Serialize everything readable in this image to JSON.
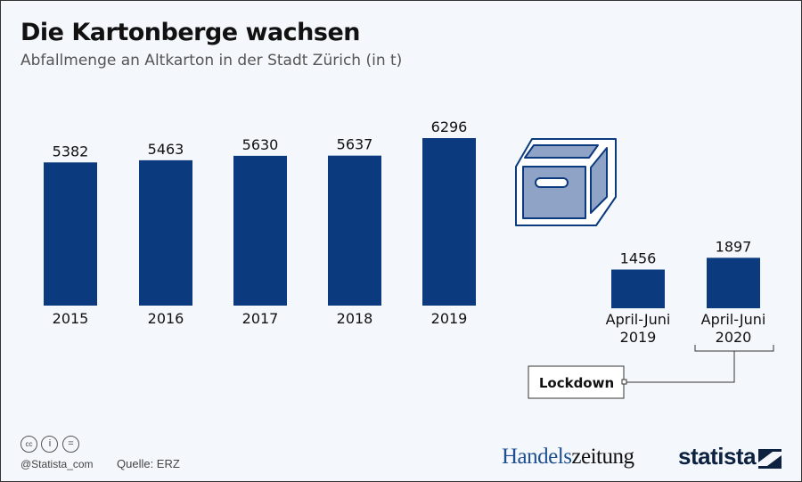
{
  "chart_data": {
    "type": "bar",
    "title": "Die Kartonberge wachsen",
    "subtitle": "Abfallmenge an Altkarton in der Stadt Zürich (in t)",
    "groups": [
      {
        "categories": [
          "2015",
          "2016",
          "2017",
          "2018",
          "2019"
        ],
        "values": [
          5382,
          5463,
          5630,
          5637,
          6296
        ]
      },
      {
        "categories": [
          [
            "April-Juni",
            "2019"
          ],
          [
            "April-Juni",
            "2020"
          ]
        ],
        "values": [
          1456,
          1897
        ]
      }
    ],
    "annotation": "Lockdown",
    "bar_color": "#0b3a7e",
    "ylim": [
      0,
      6296
    ],
    "grid": false
  },
  "footer": {
    "handle": "@Statista_com",
    "source": "Quelle: ERZ",
    "logo_handelszeitung_a": "Handels",
    "logo_handelszeitung_b": "zeitung",
    "logo_statista": "statista"
  },
  "icons": [
    "cc-icon",
    "by-icon",
    "nd-icon",
    "cardboard-box-icon",
    "statista-logo-icon"
  ]
}
